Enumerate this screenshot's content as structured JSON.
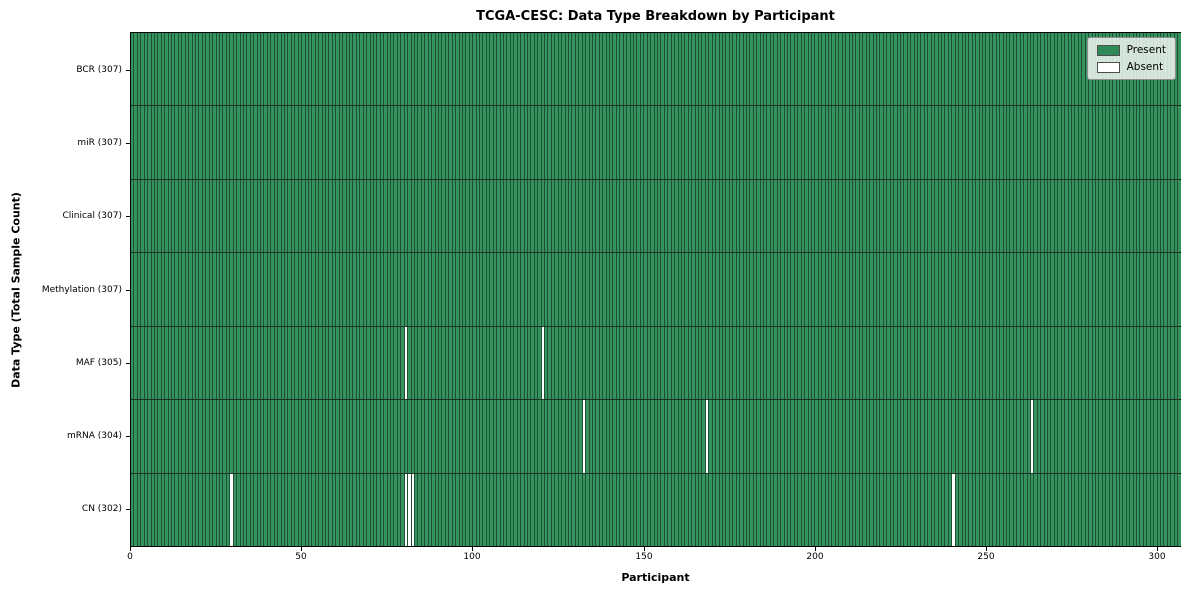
{
  "colors": {
    "present": "#35935e",
    "absent": "#ffffff",
    "cell_edge": "#1d5037",
    "row_separator": "#1c3325",
    "axis": "#000000",
    "legend_bg": "rgba(240,246,240,0.85)",
    "legend_border": "#8f8f8f"
  },
  "chart_data": {
    "type": "heatmap",
    "title": "TCGA-CESC: Data Type Breakdown by Participant",
    "xlabel": "Participant",
    "ylabel": "Data Type (Total Sample Count)",
    "n_participants": 307,
    "xlim": [
      0,
      307
    ],
    "x_ticks": [
      0,
      50,
      100,
      150,
      200,
      250,
      300
    ],
    "legend": [
      {
        "label": "Present",
        "color": "#2e8b57"
      },
      {
        "label": "Absent",
        "color": "#ffffff"
      }
    ],
    "legend_position": "upper right",
    "grid": false,
    "rows": [
      {
        "label": "BCR (307)",
        "data_type": "BCR",
        "total": 307,
        "absent_participants": []
      },
      {
        "label": "miR (307)",
        "data_type": "miR",
        "total": 307,
        "absent_participants": []
      },
      {
        "label": "Clinical (307)",
        "data_type": "Clinical",
        "total": 307,
        "absent_participants": []
      },
      {
        "label": "Methylation (307)",
        "data_type": "Methylation",
        "total": 307,
        "absent_participants": []
      },
      {
        "label": "MAF (305)",
        "data_type": "MAF",
        "total": 305,
        "absent_participants": [
          80,
          120
        ]
      },
      {
        "label": "mRNA (304)",
        "data_type": "mRNA",
        "total": 304,
        "absent_participants": [
          132,
          168,
          263
        ]
      },
      {
        "label": "CN (302)",
        "data_type": "CN",
        "total": 302,
        "absent_participants": [
          29,
          80,
          81,
          82,
          240
        ]
      }
    ]
  }
}
